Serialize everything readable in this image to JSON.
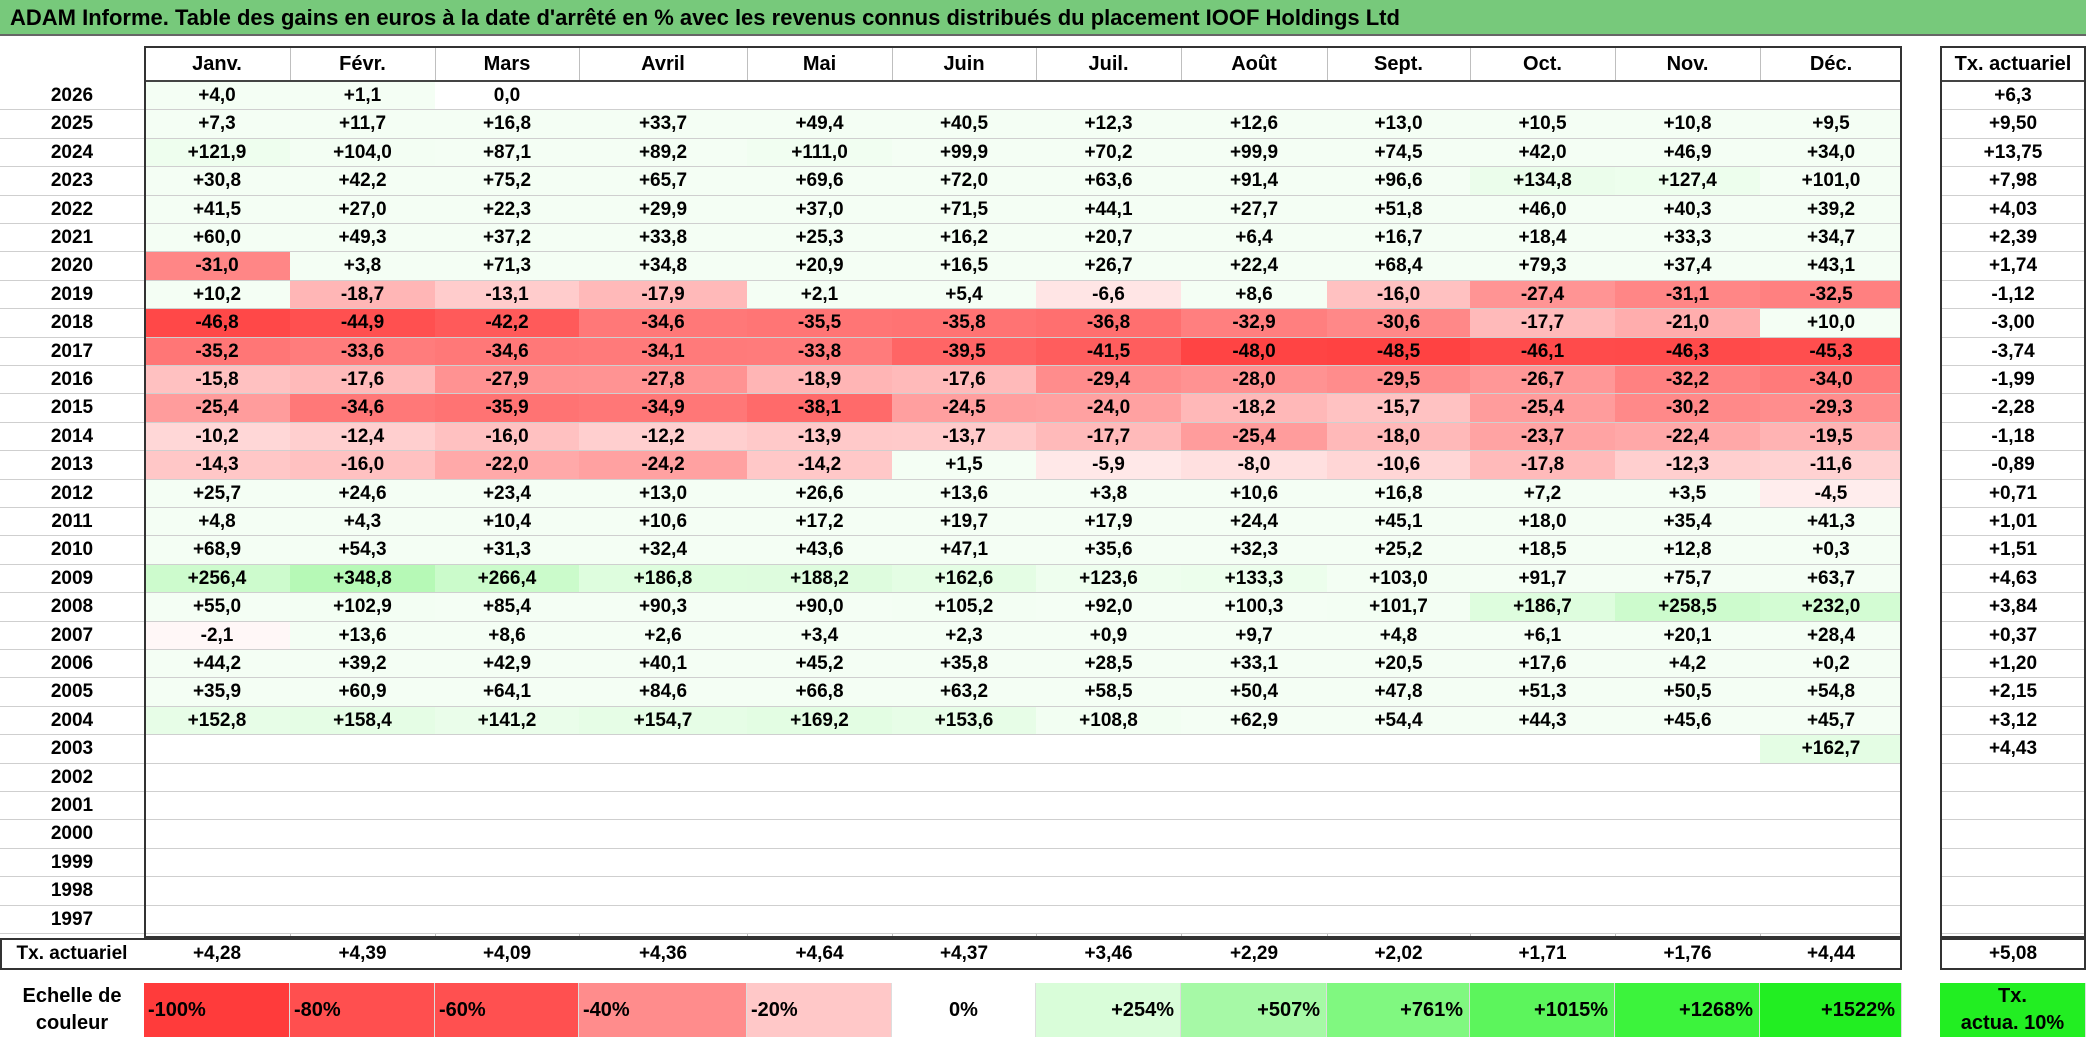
{
  "title": "ADAM Informe. Table des gains en euros à la date d'arrêté en % avec les revenus connus distribués du placement IOOF Holdings Ltd",
  "months": [
    "Janv.",
    "Févr.",
    "Mars",
    "Avril",
    "Mai",
    "Juin",
    "Juil.",
    "Août",
    "Sept.",
    "Oct.",
    "Nov.",
    "Déc."
  ],
  "rate_header": "Tx. actuariel",
  "rows": [
    {
      "year": "2026",
      "values": [
        "+4,0",
        "+1,1",
        "0,0",
        "",
        "",
        "",
        "",
        "",
        "",
        "",
        "",
        ""
      ],
      "rate": "+6,3"
    },
    {
      "year": "2025",
      "values": [
        "+7,3",
        "+11,7",
        "+16,8",
        "+33,7",
        "+49,4",
        "+40,5",
        "+12,3",
        "+12,6",
        "+13,0",
        "+10,5",
        "+10,8",
        "+9,5"
      ],
      "rate": "+9,50"
    },
    {
      "year": "2024",
      "values": [
        "+121,9",
        "+104,0",
        "+87,1",
        "+89,2",
        "+111,0",
        "+99,9",
        "+70,2",
        "+99,9",
        "+74,5",
        "+42,0",
        "+46,9",
        "+34,0"
      ],
      "rate": "+13,75"
    },
    {
      "year": "2023",
      "values": [
        "+30,8",
        "+42,2",
        "+75,2",
        "+65,7",
        "+69,6",
        "+72,0",
        "+63,6",
        "+91,4",
        "+96,6",
        "+134,8",
        "+127,4",
        "+101,0"
      ],
      "rate": "+7,98"
    },
    {
      "year": "2022",
      "values": [
        "+41,5",
        "+27,0",
        "+22,3",
        "+29,9",
        "+37,0",
        "+71,5",
        "+44,1",
        "+27,7",
        "+51,8",
        "+46,0",
        "+40,3",
        "+39,2"
      ],
      "rate": "+4,03"
    },
    {
      "year": "2021",
      "values": [
        "+60,0",
        "+49,3",
        "+37,2",
        "+33,8",
        "+25,3",
        "+16,2",
        "+20,7",
        "+6,4",
        "+16,7",
        "+18,4",
        "+33,3",
        "+34,7"
      ],
      "rate": "+2,39"
    },
    {
      "year": "2020",
      "values": [
        "-31,0",
        "+3,8",
        "+71,3",
        "+34,8",
        "+20,9",
        "+16,5",
        "+26,7",
        "+22,4",
        "+68,4",
        "+79,3",
        "+37,4",
        "+43,1"
      ],
      "rate": "+1,74"
    },
    {
      "year": "2019",
      "values": [
        "+10,2",
        "-18,7",
        "-13,1",
        "-17,9",
        "+2,1",
        "+5,4",
        "-6,6",
        "+8,6",
        "-16,0",
        "-27,4",
        "-31,1",
        "-32,5"
      ],
      "rate": "-1,12"
    },
    {
      "year": "2018",
      "values": [
        "-46,8",
        "-44,9",
        "-42,2",
        "-34,6",
        "-35,5",
        "-35,8",
        "-36,8",
        "-32,9",
        "-30,6",
        "-17,7",
        "-21,0",
        "+10,0"
      ],
      "rate": "-3,00"
    },
    {
      "year": "2017",
      "values": [
        "-35,2",
        "-33,6",
        "-34,6",
        "-34,1",
        "-33,8",
        "-39,5",
        "-41,5",
        "-48,0",
        "-48,5",
        "-46,1",
        "-46,3",
        "-45,3"
      ],
      "rate": "-3,74"
    },
    {
      "year": "2016",
      "values": [
        "-15,8",
        "-17,6",
        "-27,9",
        "-27,8",
        "-18,9",
        "-17,6",
        "-29,4",
        "-28,0",
        "-29,5",
        "-26,7",
        "-32,2",
        "-34,0"
      ],
      "rate": "-1,99"
    },
    {
      "year": "2015",
      "values": [
        "-25,4",
        "-34,6",
        "-35,9",
        "-34,9",
        "-38,1",
        "-24,5",
        "-24,0",
        "-18,2",
        "-15,7",
        "-25,4",
        "-30,2",
        "-29,3"
      ],
      "rate": "-2,28"
    },
    {
      "year": "2014",
      "values": [
        "-10,2",
        "-12,4",
        "-16,0",
        "-12,2",
        "-13,9",
        "-13,7",
        "-17,7",
        "-25,4",
        "-18,0",
        "-23,7",
        "-22,4",
        "-19,5"
      ],
      "rate": "-1,18"
    },
    {
      "year": "2013",
      "values": [
        "-14,3",
        "-16,0",
        "-22,0",
        "-24,2",
        "-14,2",
        "+1,5",
        "-5,9",
        "-8,0",
        "-10,6",
        "-17,8",
        "-12,3",
        "-11,6"
      ],
      "rate": "-0,89"
    },
    {
      "year": "2012",
      "values": [
        "+25,7",
        "+24,6",
        "+23,4",
        "+13,0",
        "+26,6",
        "+13,6",
        "+3,8",
        "+10,6",
        "+16,8",
        "+7,2",
        "+3,5",
        "-4,5"
      ],
      "rate": "+0,71"
    },
    {
      "year": "2011",
      "values": [
        "+4,8",
        "+4,3",
        "+10,4",
        "+10,6",
        "+17,2",
        "+19,7",
        "+17,9",
        "+24,4",
        "+45,1",
        "+18,0",
        "+35,4",
        "+41,3"
      ],
      "rate": "+1,01"
    },
    {
      "year": "2010",
      "values": [
        "+68,9",
        "+54,3",
        "+31,3",
        "+32,4",
        "+43,6",
        "+47,1",
        "+35,6",
        "+32,3",
        "+25,2",
        "+18,5",
        "+12,8",
        "+0,3"
      ],
      "rate": "+1,51"
    },
    {
      "year": "2009",
      "values": [
        "+256,4",
        "+348,8",
        "+266,4",
        "+186,8",
        "+188,2",
        "+162,6",
        "+123,6",
        "+133,3",
        "+103,0",
        "+91,7",
        "+75,7",
        "+63,7"
      ],
      "rate": "+4,63"
    },
    {
      "year": "2008",
      "values": [
        "+55,0",
        "+102,9",
        "+85,4",
        "+90,3",
        "+90,0",
        "+105,2",
        "+92,0",
        "+100,3",
        "+101,7",
        "+186,7",
        "+258,5",
        "+232,0"
      ],
      "rate": "+3,84"
    },
    {
      "year": "2007",
      "values": [
        "-2,1",
        "+13,6",
        "+8,6",
        "+2,6",
        "+3,4",
        "+2,3",
        "+0,9",
        "+9,7",
        "+4,8",
        "+6,1",
        "+20,1",
        "+28,4"
      ],
      "rate": "+0,37"
    },
    {
      "year": "2006",
      "values": [
        "+44,2",
        "+39,2",
        "+42,9",
        "+40,1",
        "+45,2",
        "+35,8",
        "+28,5",
        "+33,1",
        "+20,5",
        "+17,6",
        "+4,2",
        "+0,2"
      ],
      "rate": "+1,20"
    },
    {
      "year": "2005",
      "values": [
        "+35,9",
        "+60,9",
        "+64,1",
        "+84,6",
        "+66,8",
        "+63,2",
        "+58,5",
        "+50,4",
        "+47,8",
        "+51,3",
        "+50,5",
        "+54,8"
      ],
      "rate": "+2,15"
    },
    {
      "year": "2004",
      "values": [
        "+152,8",
        "+158,4",
        "+141,2",
        "+154,7",
        "+169,2",
        "+153,6",
        "+108,8",
        "+62,9",
        "+54,4",
        "+44,3",
        "+45,6",
        "+45,7"
      ],
      "rate": "+3,12"
    },
    {
      "year": "2003",
      "values": [
        "",
        "",
        "",
        "",
        "",
        "",
        "",
        "",
        "",
        "",
        "",
        "+162,7"
      ],
      "rate": "+4,43"
    },
    {
      "year": "2002",
      "values": [
        "",
        "",
        "",
        "",
        "",
        "",
        "",
        "",
        "",
        "",
        "",
        ""
      ],
      "rate": ""
    },
    {
      "year": "2001",
      "values": [
        "",
        "",
        "",
        "",
        "",
        "",
        "",
        "",
        "",
        "",
        "",
        ""
      ],
      "rate": ""
    },
    {
      "year": "2000",
      "values": [
        "",
        "",
        "",
        "",
        "",
        "",
        "",
        "",
        "",
        "",
        "",
        ""
      ],
      "rate": ""
    },
    {
      "year": "1999",
      "values": [
        "",
        "",
        "",
        "",
        "",
        "",
        "",
        "",
        "",
        "",
        "",
        ""
      ],
      "rate": ""
    },
    {
      "year": "1998",
      "values": [
        "",
        "",
        "",
        "",
        "",
        "",
        "",
        "",
        "",
        "",
        "",
        ""
      ],
      "rate": ""
    },
    {
      "year": "1997",
      "values": [
        "",
        "",
        "",
        "",
        "",
        "",
        "",
        "",
        "",
        "",
        "",
        ""
      ],
      "rate": ""
    }
  ],
  "footer": {
    "label": "Tx. actuariel",
    "values": [
      "+4,28",
      "+4,39",
      "+4,09",
      "+4,36",
      "+4,64",
      "+4,37",
      "+3,46",
      "+2,29",
      "+2,02",
      "+1,71",
      "+1,76",
      "+4,44"
    ],
    "rate": "+5,08"
  },
  "scale": {
    "label_line1": "Echelle de",
    "label_line2": "couleur",
    "items": [
      {
        "text": "-100%",
        "color": "#ff3b3b"
      },
      {
        "text": "-80%",
        "color": "#ff4f4f"
      },
      {
        "text": "-60%",
        "color": "#ff5050"
      },
      {
        "text": "-40%",
        "color": "#ff8c8c"
      },
      {
        "text": "-20%",
        "color": "#ffc8c8"
      },
      {
        "text": "0%",
        "color": "#ffffff"
      },
      {
        "text": "+254%",
        "color": "#d9fdd9"
      },
      {
        "text": "+507%",
        "color": "#a6f9a6"
      },
      {
        "text": "+761%",
        "color": "#80f880"
      },
      {
        "text": "+1015%",
        "color": "#5cf55c"
      },
      {
        "text": "+1268%",
        "color": "#3cf33c"
      },
      {
        "text": "+1522%",
        "color": "#22ee22"
      }
    ],
    "rate_line1": "Tx.",
    "rate_line2": "actua. 10%",
    "rate_color": "#22ee22"
  },
  "colors": {
    "title_bg": "#77c97b",
    "negative_base": "#ff3c3c",
    "positive_base": "#20ee20"
  }
}
